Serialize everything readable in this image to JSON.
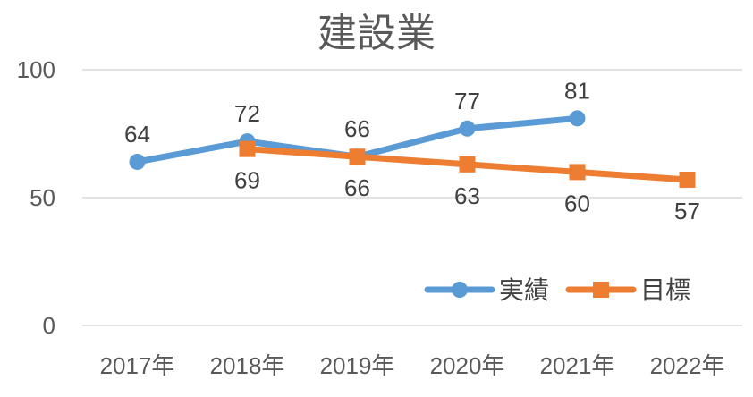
{
  "chart_data": {
    "type": "line",
    "title": "建設業",
    "categories": [
      "2017年",
      "2018年",
      "2019年",
      "2020年",
      "2021年",
      "2022年"
    ],
    "series": [
      {
        "name": "実績",
        "color": "#5B9BD5",
        "marker": "circle",
        "values": [
          64,
          72,
          66,
          77,
          81,
          null
        ]
      },
      {
        "name": "目標",
        "color": "#ED7D31",
        "marker": "square",
        "values": [
          null,
          69,
          66,
          63,
          60,
          57
        ]
      }
    ],
    "ylim": [
      0,
      100
    ],
    "yticks": [
      0,
      50,
      100
    ],
    "grid": true,
    "legend": "bottom-right",
    "data_labels": true
  }
}
